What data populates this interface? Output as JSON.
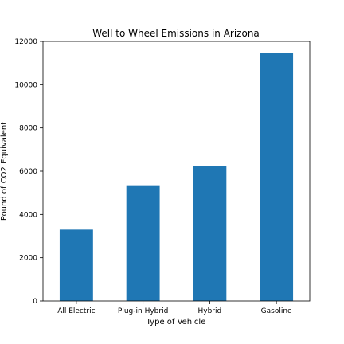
{
  "chart_data": {
    "type": "bar",
    "title": "Well to Wheel Emissions in Arizona",
    "xlabel": "Type of Vehicle",
    "ylabel": "Pound of CO2 Equivalent",
    "categories": [
      "All Electric",
      "Plug-in Hybrid",
      "Hybrid",
      "Gasoline"
    ],
    "values": [
      3300,
      5350,
      6250,
      11450
    ],
    "ylim": [
      0,
      12000
    ],
    "yticks": [
      0,
      2000,
      4000,
      6000,
      8000,
      10000,
      12000
    ],
    "ytick_labels": [
      "0",
      "2000",
      "4000",
      "6000",
      "8000",
      "10000",
      "12000"
    ],
    "grid": false,
    "legend": "none",
    "bar_color": "#1f77b4"
  }
}
